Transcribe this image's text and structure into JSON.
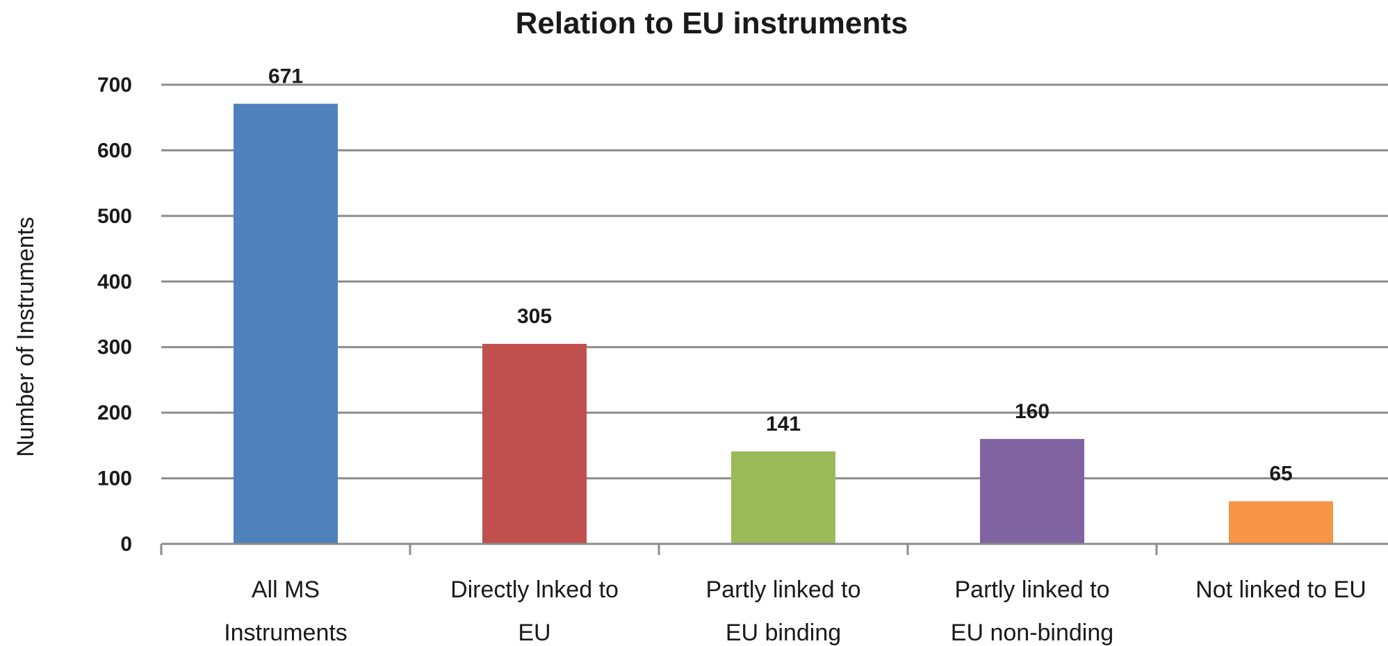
{
  "chart_data": {
    "type": "bar",
    "title": "Relation to EU instruments",
    "xlabel": "",
    "ylabel": "Number of Instruments",
    "ylim": [
      0,
      700
    ],
    "yticks": [
      0,
      100,
      200,
      300,
      400,
      500,
      600,
      700
    ],
    "grid": true,
    "legend": "none",
    "categories": [
      [
        "All MS",
        "Instruments"
      ],
      [
        "Directly lnked to",
        "EU"
      ],
      [
        "Partly linked to",
        "EU binding"
      ],
      [
        "Partly linked to",
        "EU non-binding"
      ],
      [
        "Not linked to EU"
      ]
    ],
    "values": [
      671,
      305,
      141,
      160,
      65
    ],
    "data_labels": [
      "671",
      "305",
      "141",
      "160",
      "65"
    ],
    "colors": [
      "#4f81bd",
      "#c0504d",
      "#9bbb59",
      "#8064a2",
      "#f79646"
    ]
  }
}
